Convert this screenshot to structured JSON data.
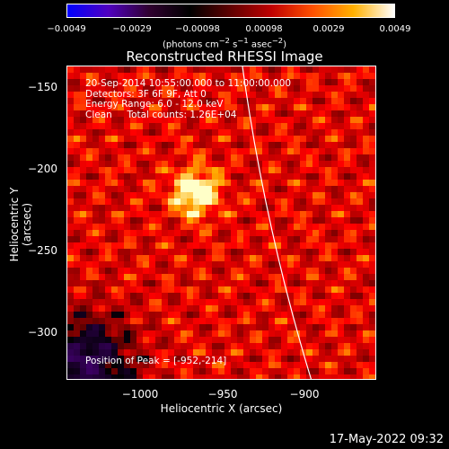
{
  "colorbar": {
    "ticks": [
      "−0.0049",
      "−0.0029",
      "−0.00098",
      "0.00098",
      "0.0029",
      "0.0049"
    ],
    "units_html": "(photons cm<sup>−2</sup> s<sup>−1</sup> asec<sup>−2</sup>)",
    "colors": [
      "#0000ff",
      "#5000c0",
      "#300030",
      "#000000",
      "#600000",
      "#c00000",
      "#ff5000",
      "#ffb000",
      "#ffffff"
    ]
  },
  "title": "Reconstructed RHESSI Image",
  "info": {
    "line1": "20-Sep-2014 10:55:00.000 to 11:00:00.000",
    "line2": "Detectors: 3F 6F 9F, Att 0",
    "line3": "Energy Range: 6.0 - 12.0 keV",
    "line4": "Clean     Total counts: 1.26E+04",
    "peak": "Position of Peak = [-952,-214]"
  },
  "axes": {
    "xlabel": "Heliocentric X (arcsec)",
    "ylabel": "Heliocentric Y (arcsec)",
    "xticks": [
      "−1000",
      "−950",
      "−900"
    ],
    "yticks": [
      "−150",
      "−200",
      "−250",
      "−300"
    ]
  },
  "timestamp": "17-May-2022 09:32"
}
